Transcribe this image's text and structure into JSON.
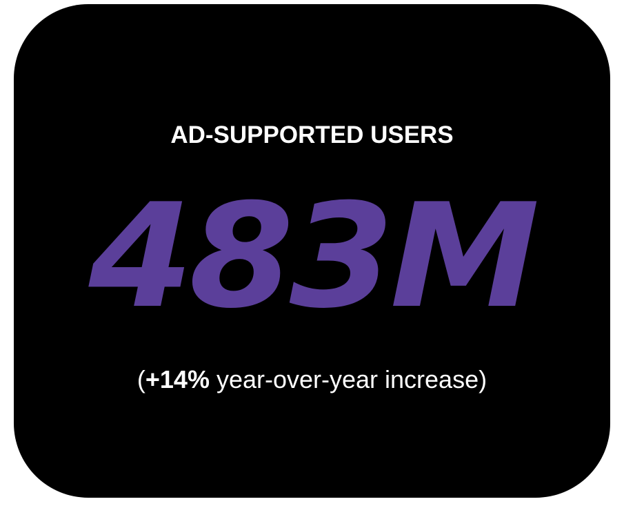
{
  "card": {
    "background_color": "#000000",
    "accent_color": "#5b3f9a",
    "label": "AD-SUPPORTED USERS",
    "value": "483M",
    "change": {
      "open_paren": "(",
      "percent": "+14%",
      "text": " year-over-year increase",
      "close_paren": ")"
    }
  }
}
